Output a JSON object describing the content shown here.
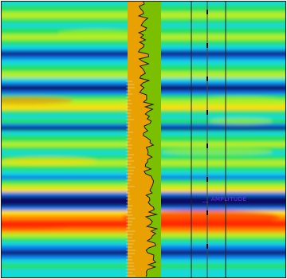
{
  "display": {
    "background_color": "#22dd55",
    "colormap": [
      "#0a0a66",
      "#1177ee",
      "#19d9d9",
      "#27e05a",
      "#b7ee22",
      "#ffdd00",
      "#ff8a00",
      "#ff2a00"
    ],
    "annotation": {
      "text": "__ AMPLITUDE",
      "color": "#7a2cff"
    },
    "log_track_fill_color": "#e8a100",
    "log_track_alt_color": "#7ac000"
  }
}
